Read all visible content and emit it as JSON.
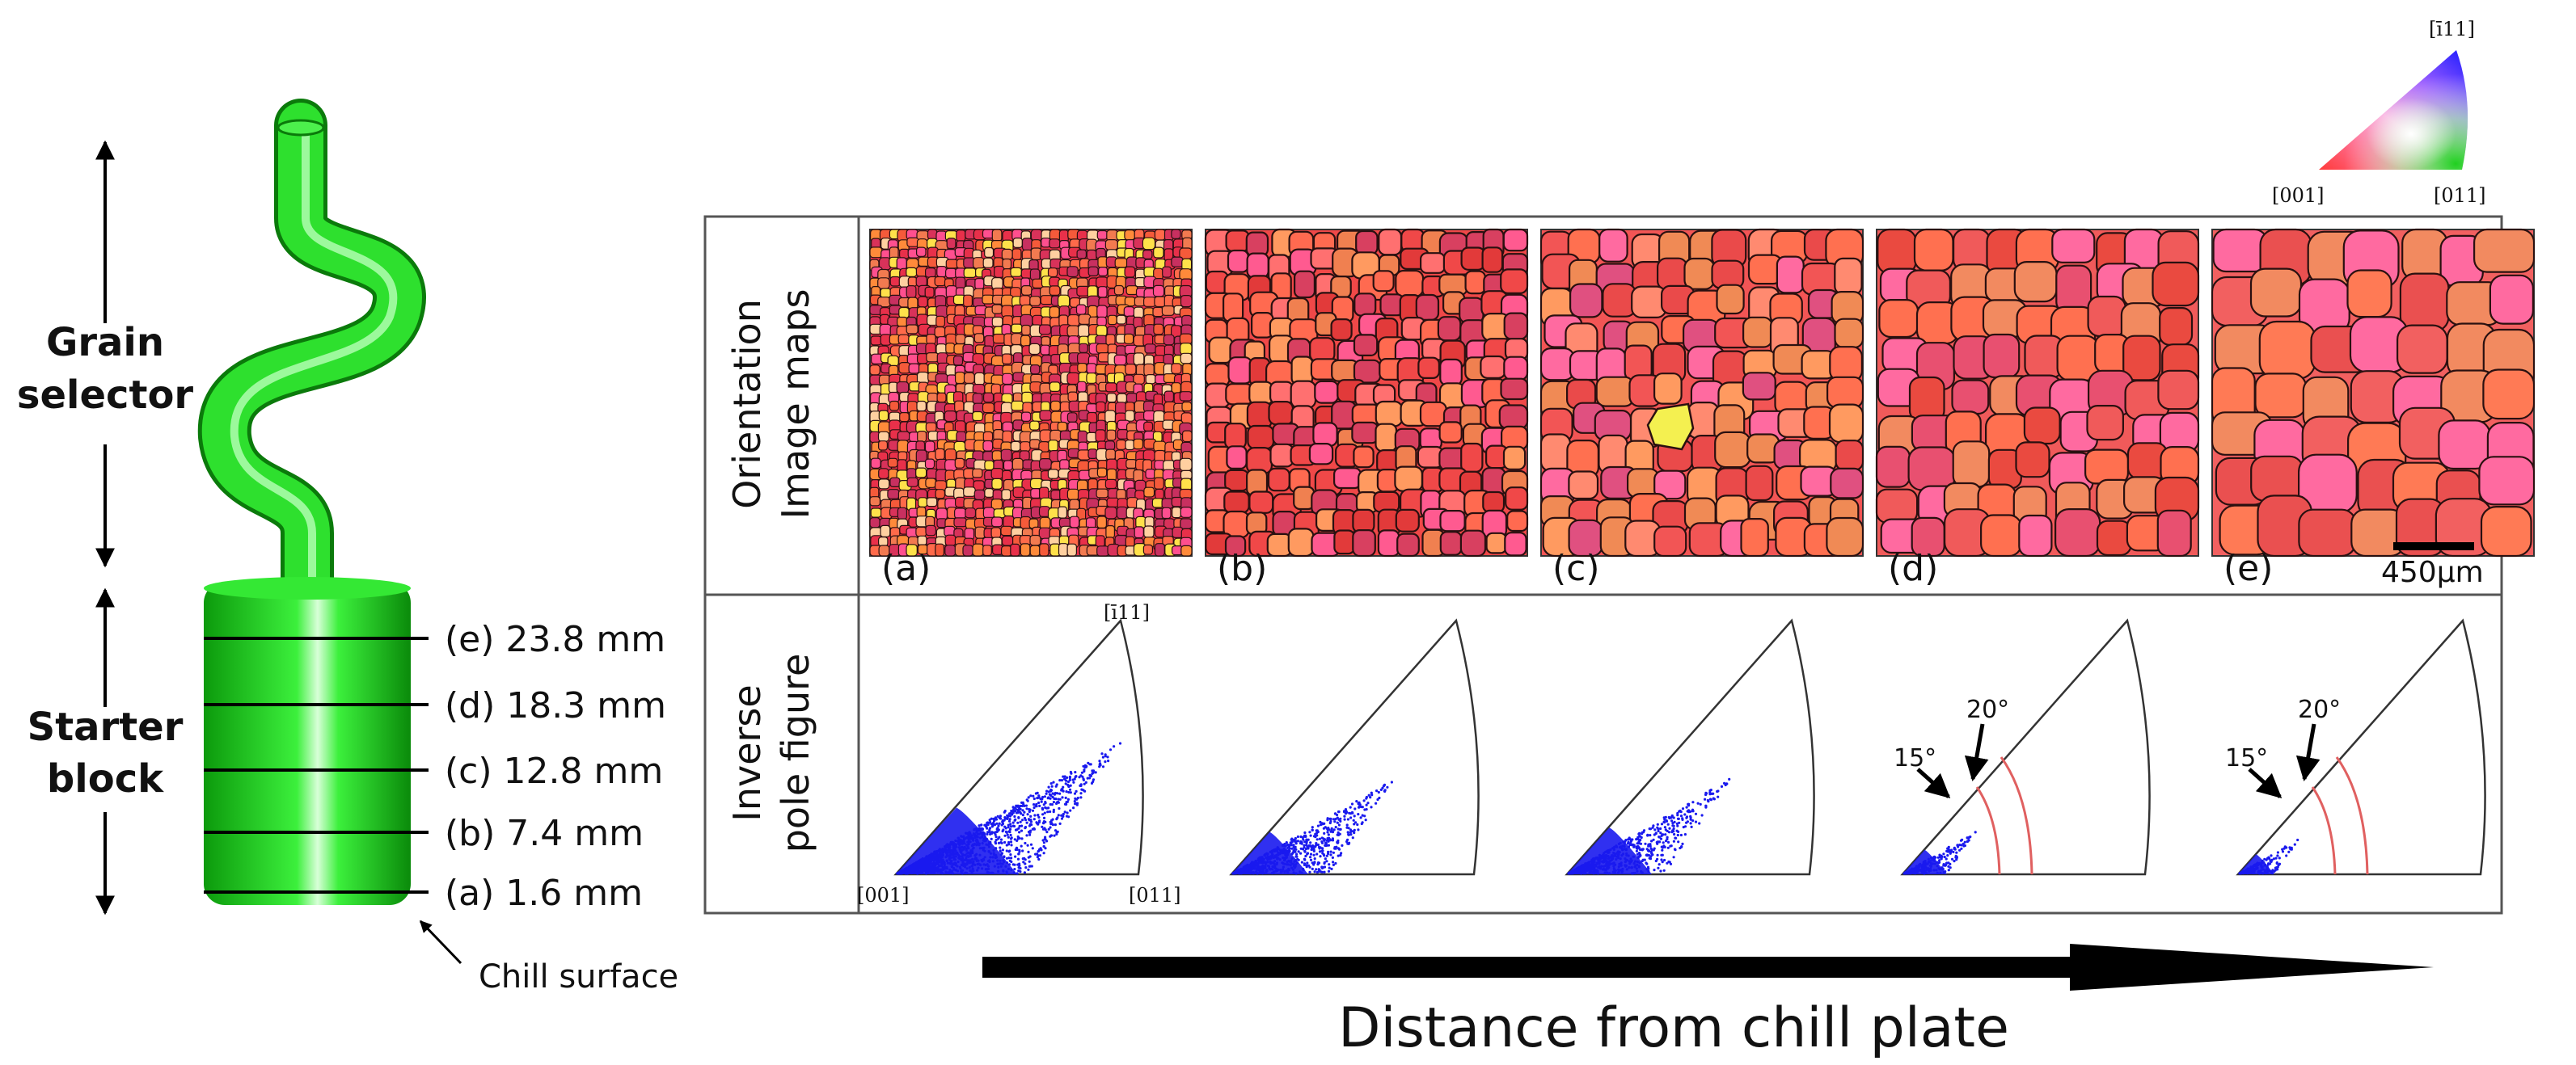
{
  "left": {
    "grain_selector_label": [
      "Grain",
      "selector"
    ],
    "starter_block_label": [
      "Starter",
      "block"
    ],
    "chill_surface_label": "Chill surface",
    "sections": [
      {
        "letter": "(e)",
        "value": "23.8 mm"
      },
      {
        "letter": "(d)",
        "value": "18.3 mm"
      },
      {
        "letter": "(c)",
        "value": "12.8 mm"
      },
      {
        "letter": "(b)",
        "value": "7.4 mm"
      },
      {
        "letter": "(a)",
        "value": "1.6 mm"
      }
    ]
  },
  "legend": {
    "top": "[ī11]",
    "left": "[001]",
    "right": "[011]"
  },
  "row_labels": {
    "maps": [
      "Orientation",
      "Image maps"
    ],
    "ipf": [
      "Inverse",
      "pole figure"
    ]
  },
  "maps": [
    {
      "letter": "(a)"
    },
    {
      "letter": "(b)"
    },
    {
      "letter": "(c)"
    },
    {
      "letter": "(d)"
    },
    {
      "letter": "(e)"
    }
  ],
  "scale_bar": "450μm",
  "ipf": {
    "top": "[ī11]",
    "left": "[001]",
    "right": "[011]",
    "angle_15": "15°",
    "angle_20": "20°"
  },
  "colors": {
    "green": "#22dd22",
    "dark_green": "#109010",
    "dot_blue": "#1a1aee",
    "red_arc": "#e06060"
  },
  "bottom_arrow_label": "Distance from chill plate"
}
